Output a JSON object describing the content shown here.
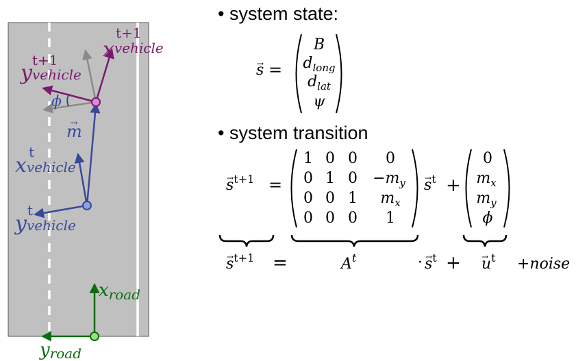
{
  "bullets": {
    "system_state": "system state:",
    "system_transition": "system transition"
  },
  "labels": {
    "x_vehicle_next": "x",
    "x_vehicle_next_sub": "vehicle",
    "x_vehicle_next_sup": "t+1",
    "y_vehicle_next": "y",
    "y_vehicle_next_sub": "vehicle",
    "y_vehicle_next_sup": "t+1",
    "phi": "ϕ",
    "m_vec": "m",
    "x_vehicle": "x",
    "x_vehicle_sub": "vehicle",
    "x_vehicle_sup": "t",
    "y_vehicle": "y",
    "y_vehicle_sub": "vehicle",
    "y_vehicle_sup": "t",
    "x_road": "x",
    "x_road_sub": "road",
    "y_road": "y",
    "y_road_sub": "road"
  },
  "state_eq": {
    "lhs": "s",
    "equals": "=",
    "entries": [
      "B",
      "d",
      "d",
      "ψ"
    ],
    "subs": [
      "",
      "long",
      "lat",
      ""
    ]
  },
  "transition_eq": {
    "lhs": "s",
    "lhs_sup": "t+1",
    "equals": "=",
    "matrix": [
      [
        "1",
        "0",
        "0",
        "0"
      ],
      [
        "0",
        "1",
        "0",
        "−m"
      ],
      [
        "0",
        "0",
        "1",
        "m"
      ],
      [
        "0",
        "0",
        "0",
        "1"
      ]
    ],
    "matrix_subs": [
      [
        "",
        "",
        "",
        ""
      ],
      [
        "",
        "",
        "",
        "y"
      ],
      [
        "",
        "",
        "",
        "x"
      ],
      [
        "",
        "",
        "",
        ""
      ]
    ],
    "s_t": "s",
    "s_t_sup": "t",
    "plus": "+",
    "u_entries": [
      "0",
      "m",
      "m",
      "ϕ"
    ],
    "u_subs": [
      "",
      "x",
      "y",
      ""
    ]
  },
  "summary_eq": {
    "lhs": "s",
    "lhs_sup": "t+1",
    "equals": "=",
    "A": "A",
    "A_sup": "t",
    "dot": "·",
    "s": "s",
    "s_sup": "t",
    "plus": "+",
    "u": "u",
    "u_sup": "t",
    "noise": "+noise"
  },
  "colors": {
    "road": "#c0c0c0",
    "vehicle_next": "#7a1a6e",
    "vehicle_cur": "#39499a",
    "road_frame": "#0f6b12",
    "gray_axis": "#8a8a8a"
  }
}
